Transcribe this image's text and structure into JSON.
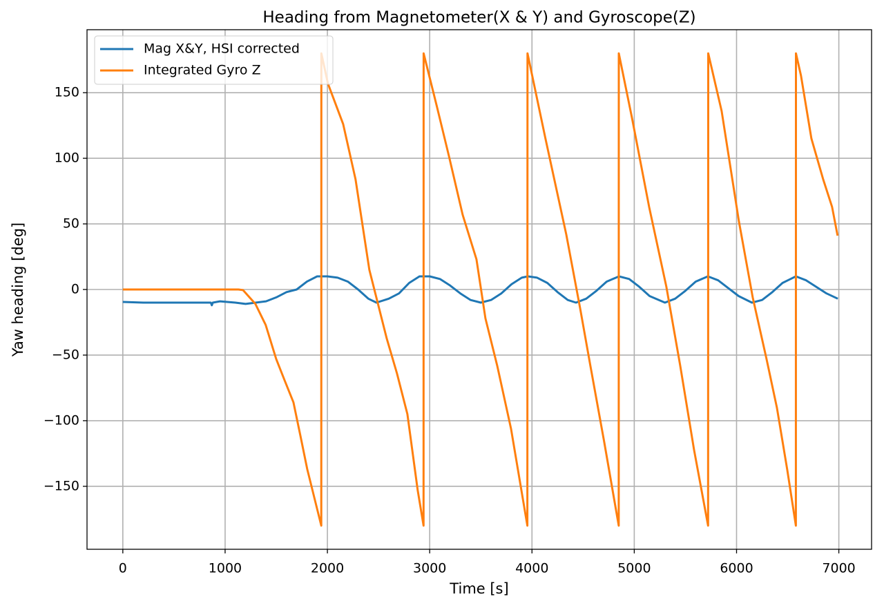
{
  "chart_data": {
    "type": "line",
    "title": "Heading from Magnetometer(X & Y) and Gyroscope(Z)",
    "x_label": "Time [s]",
    "y_label": "Yaw heading [deg]",
    "xlim": [
      -350,
      7320
    ],
    "ylim": [
      -198,
      198
    ],
    "xticks": [
      0,
      1000,
      2000,
      3000,
      4000,
      5000,
      6000,
      7000
    ],
    "yticks": [
      {
        "value": -150,
        "label": "−150"
      },
      {
        "value": -100,
        "label": "−100"
      },
      {
        "value": -50,
        "label": "−50"
      },
      0,
      50,
      100,
      150
    ],
    "grid": true,
    "legend": "upper left",
    "series": [
      {
        "name": "Mag X&Y, HSI corrected",
        "color": "#1f77b4",
        "x": [
          0,
          200,
          400,
          600,
          800,
          860,
          870,
          880,
          950,
          1100,
          1200,
          1300,
          1400,
          1500,
          1600,
          1700,
          1800,
          1900,
          2000,
          2100,
          2200,
          2300,
          2400,
          2480,
          2600,
          2700,
          2800,
          2900,
          3000,
          3100,
          3200,
          3300,
          3400,
          3500,
          3600,
          3700,
          3800,
          3900,
          3960,
          4050,
          4150,
          4250,
          4350,
          4430,
          4530,
          4630,
          4730,
          4850,
          4950,
          5050,
          5150,
          5300,
          5400,
          5500,
          5600,
          5720,
          5820,
          5920,
          6020,
          6150,
          6250,
          6350,
          6450,
          6580,
          6680,
          6780,
          6880,
          6990
        ],
        "values": [
          -9.5,
          -10,
          -10,
          -10,
          -10,
          -10,
          -12,
          -10,
          -9,
          -10,
          -11,
          -10,
          -9,
          -6,
          -2,
          0,
          6,
          10,
          10,
          9,
          6,
          0,
          -7,
          -10,
          -7,
          -3,
          5,
          10,
          10,
          8,
          3,
          -3,
          -8,
          -10,
          -8,
          -3,
          4,
          9,
          10,
          9,
          5,
          -2,
          -8,
          -10,
          -7,
          -1,
          6,
          10,
          8,
          2,
          -5,
          -10,
          -7,
          -1,
          6,
          10,
          7,
          1,
          -5,
          -10,
          -8,
          -2,
          5,
          10,
          7,
          2,
          -3,
          -7
        ]
      },
      {
        "name": "Integrated Gyro Z",
        "color": "#ff7f0e",
        "x": [
          0,
          1130,
          1175,
          1296,
          1397,
          1499,
          1580,
          1668,
          1735,
          1803,
          1940,
          1941,
          2005,
          2154,
          2275,
          2410,
          2579,
          2680,
          2782,
          2883,
          2940,
          2941,
          3072,
          3187,
          3322,
          3457,
          3545,
          3660,
          3795,
          3955,
          3956,
          4132,
          4335,
          4470,
          4571,
          4706,
          4848,
          4849,
          4977,
          5145,
          5314,
          5449,
          5584,
          5722,
          5723,
          5854,
          6023,
          6158,
          6293,
          6394,
          6495,
          6580,
          6581,
          6630,
          6732,
          6847,
          6934,
          6988
        ],
        "values": [
          0,
          0,
          -0.5,
          -11,
          -27,
          -53,
          -69,
          -86,
          -111,
          -137,
          -180,
          180,
          157,
          126,
          84,
          15,
          -37,
          -64,
          -95,
          -153,
          -180,
          180,
          139,
          102,
          57,
          23,
          -22,
          -58,
          -106,
          -180,
          180,
          115,
          42,
          -14,
          -58,
          -116,
          -180,
          180,
          131,
          63,
          2,
          -58,
          -122,
          -180,
          180,
          136,
          52,
          -6,
          -53,
          -90,
          -137,
          -180,
          180,
          163,
          115,
          84,
          63,
          41
        ]
      }
    ]
  }
}
